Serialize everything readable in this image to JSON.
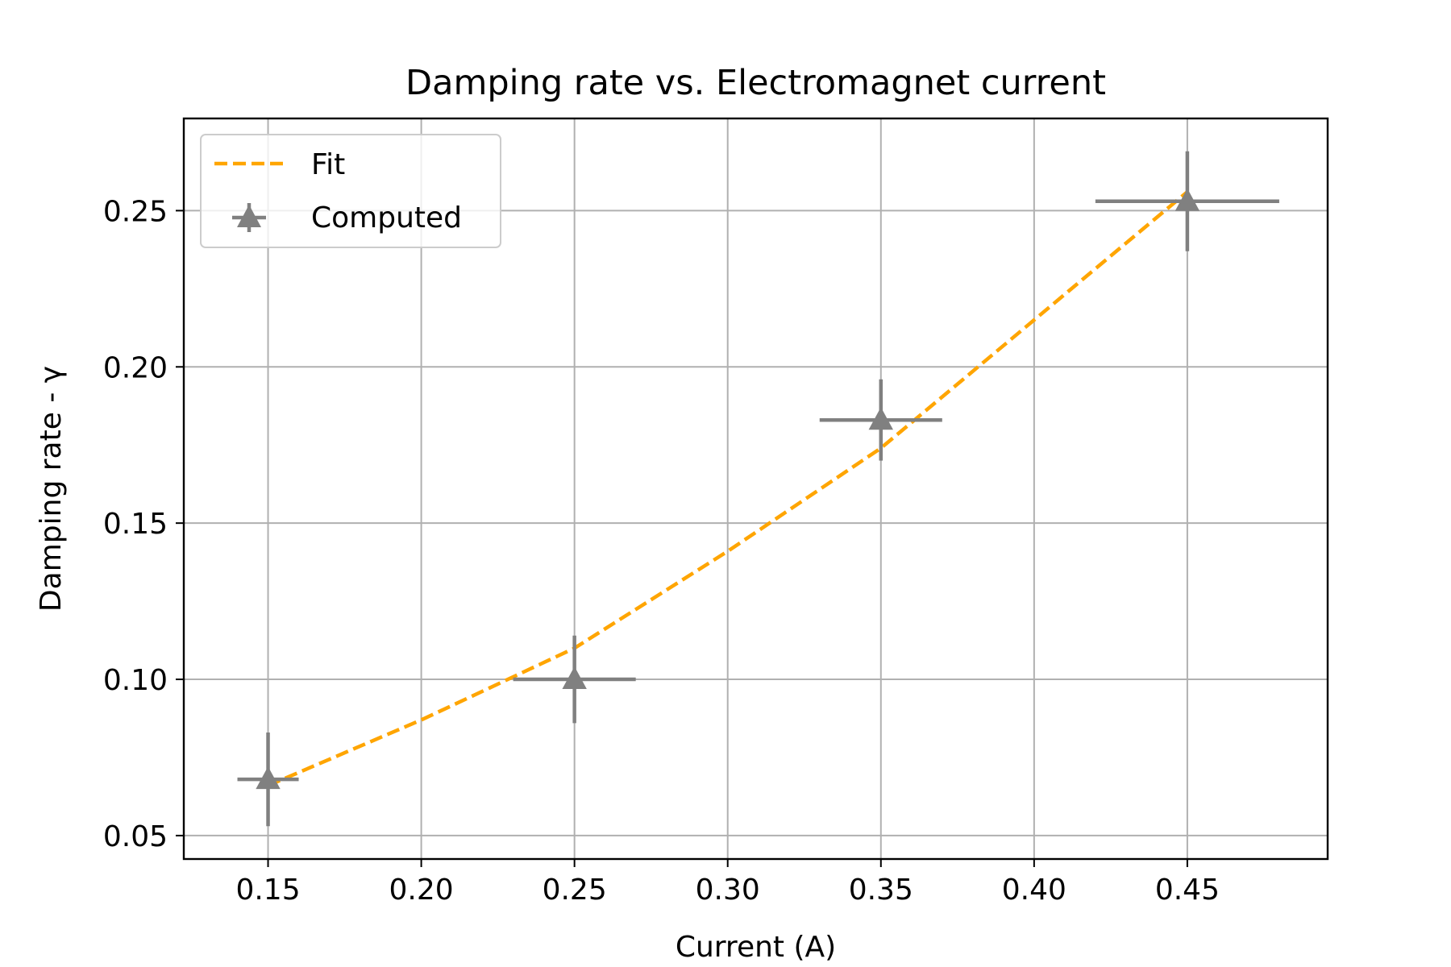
{
  "chart_data": {
    "type": "line",
    "title": "Damping rate vs. Electromagnet current",
    "xlabel": "Current (A)",
    "ylabel": "Damping rate - γ",
    "xlim": [
      0.1225,
      0.4958
    ],
    "ylim": [
      0.0425,
      0.2795
    ],
    "xticks": [
      0.15,
      0.2,
      0.25,
      0.3,
      0.35,
      0.4,
      0.45
    ],
    "xtick_labels": [
      "0.15",
      "0.20",
      "0.25",
      "0.30",
      "0.35",
      "0.40",
      "0.45"
    ],
    "yticks": [
      0.05,
      0.1,
      0.15,
      0.2,
      0.25
    ],
    "ytick_labels": [
      "0.05",
      "0.10",
      "0.15",
      "0.20",
      "0.25"
    ],
    "grid": true,
    "legend_position": "top-left",
    "series": [
      {
        "name": "Fit",
        "kind": "line",
        "style": "dashed",
        "color": "#ffa500",
        "x": [
          0.15,
          0.2,
          0.25,
          0.3,
          0.35,
          0.4,
          0.45
        ],
        "y": [
          0.066,
          0.087,
          0.11,
          0.141,
          0.174,
          0.215,
          0.256
        ]
      },
      {
        "name": "Computed",
        "kind": "errorbar",
        "marker": "triangle",
        "color": "#808080",
        "x": [
          0.15,
          0.25,
          0.35,
          0.45
        ],
        "y": [
          0.068,
          0.1,
          0.183,
          0.253
        ],
        "xerr": [
          0.01,
          0.02,
          0.02,
          0.03
        ],
        "yerr": [
          0.015,
          0.014,
          0.013,
          0.016
        ]
      }
    ]
  }
}
